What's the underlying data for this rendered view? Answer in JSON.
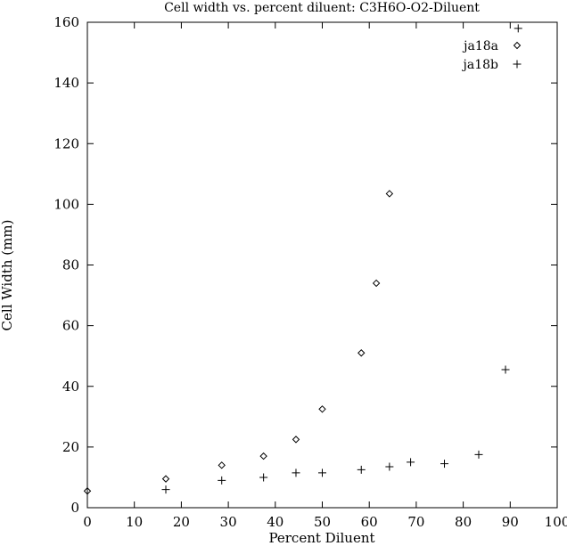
{
  "chart_data": {
    "type": "scatter",
    "title": "Cell width vs. percent diluent: C3H6O-O2-Diluent",
    "xlabel": "Percent Diluent",
    "ylabel": "Cell Width (mm)",
    "xlim": [
      0,
      100
    ],
    "ylim": [
      0,
      160
    ],
    "xticks": [
      0,
      10,
      20,
      30,
      40,
      50,
      60,
      70,
      80,
      90,
      100
    ],
    "yticks": [
      0,
      20,
      40,
      60,
      80,
      100,
      120,
      140,
      160
    ],
    "grid": false,
    "legend_position": "top-right",
    "series": [
      {
        "name": "ja18a",
        "marker": "diamond",
        "points": [
          [
            0,
            5.5
          ],
          [
            16.7,
            9.5
          ],
          [
            28.6,
            14
          ],
          [
            37.5,
            17
          ],
          [
            44.4,
            22.5
          ],
          [
            50,
            32.5
          ],
          [
            58.3,
            51
          ],
          [
            61.5,
            74
          ],
          [
            64.3,
            103.5
          ]
        ]
      },
      {
        "name": "ja18b",
        "marker": "plus",
        "points": [
          [
            16.7,
            6
          ],
          [
            28.6,
            9
          ],
          [
            37.5,
            10
          ],
          [
            44.4,
            11.5
          ],
          [
            50,
            11.5
          ],
          [
            58.3,
            12.5
          ],
          [
            64.3,
            13.5
          ],
          [
            68.8,
            15
          ],
          [
            76,
            14.5
          ],
          [
            83.3,
            17.5
          ],
          [
            89,
            45.5
          ],
          [
            91.7,
            158
          ]
        ]
      }
    ]
  }
}
